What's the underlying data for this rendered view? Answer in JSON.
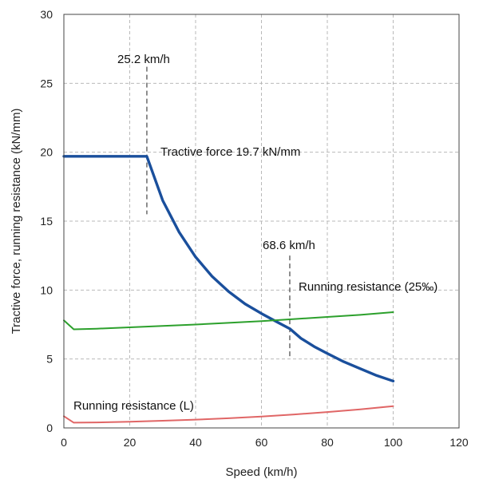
{
  "chart_data": {
    "type": "line",
    "title": "",
    "xlabel": "Speed (km/h)",
    "ylabel": "Tractive force, running resistance (kN/mm)",
    "xlim": [
      0,
      120
    ],
    "ylim": [
      0,
      30
    ],
    "xticks": [
      0,
      20,
      40,
      60,
      80,
      100,
      120
    ],
    "yticks": [
      0,
      5,
      10,
      15,
      20,
      25,
      30
    ],
    "grid": true,
    "series": [
      {
        "name": "Tractive force",
        "color": "#1a4f9c",
        "x": [
          0,
          25.2,
          30,
          35,
          40,
          45,
          50,
          55,
          60,
          65,
          68.6,
          72,
          76,
          80,
          85,
          90,
          95,
          100
        ],
        "y": [
          19.7,
          19.7,
          16.5,
          14.2,
          12.4,
          11.0,
          9.9,
          9.0,
          8.3,
          7.65,
          7.2,
          6.5,
          5.9,
          5.4,
          4.8,
          4.3,
          3.8,
          3.4
        ]
      },
      {
        "name": "Running resistance (25‰)",
        "color": "#2ca02c",
        "x": [
          0,
          3,
          10,
          20,
          30,
          40,
          50,
          60,
          70,
          80,
          90,
          100
        ],
        "y": [
          7.8,
          7.15,
          7.2,
          7.3,
          7.4,
          7.5,
          7.62,
          7.75,
          7.9,
          8.05,
          8.2,
          8.4
        ]
      },
      {
        "name": "Running resistance (L)",
        "color": "#e06666",
        "x": [
          0,
          3,
          10,
          20,
          30,
          40,
          50,
          60,
          70,
          80,
          90,
          100
        ],
        "y": [
          0.85,
          0.38,
          0.4,
          0.45,
          0.52,
          0.6,
          0.7,
          0.83,
          0.98,
          1.15,
          1.35,
          1.58
        ]
      }
    ],
    "annotations": [
      {
        "text": "25.2 km/h",
        "x": 25.2
      },
      {
        "text": "Tractive force 19.7 kN/mm"
      },
      {
        "text": "68.6 km/h",
        "x": 68.6
      },
      {
        "text": "Running resistance (25‰)"
      },
      {
        "text": "Running resistance (L)"
      }
    ],
    "markers": [
      {
        "x": 25.2,
        "y_from": 15.5,
        "y_to": 26.2
      },
      {
        "x": 68.6,
        "y_from": 5.0,
        "y_to": 12.5
      }
    ]
  }
}
